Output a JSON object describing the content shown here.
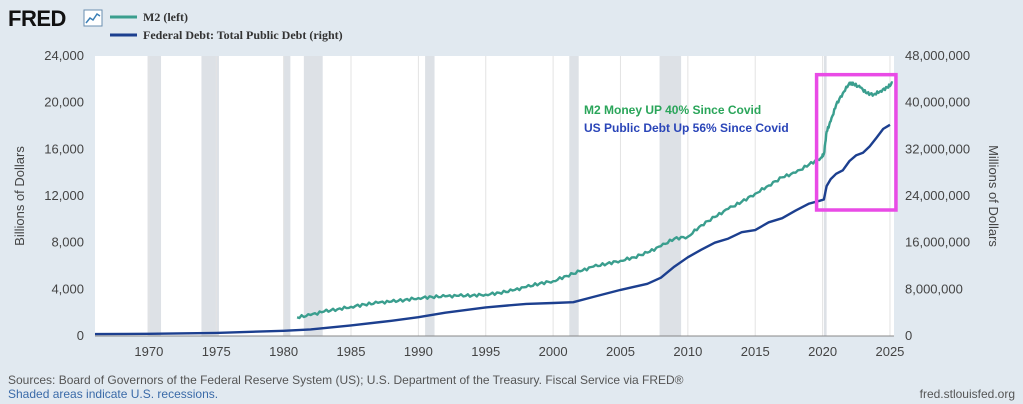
{
  "header": {
    "logo_text": "FRED",
    "logo_icon": "line-chart-icon",
    "legend": [
      {
        "label": "M2 (left)",
        "color": "#3a9e8e"
      },
      {
        "label": "Federal Debt: Total Public Debt (right)",
        "color": "#1c3f8f"
      }
    ]
  },
  "chart_data": {
    "type": "line",
    "title": "",
    "y_left_label": "Billions of Dollars",
    "y_right_label": "Millions of Dollars",
    "x_range": [
      1966,
      2025.3
    ],
    "y_left_range": [
      0,
      24000
    ],
    "y_right_range": [
      0,
      48000000
    ],
    "x_ticks": [
      1970,
      1975,
      1980,
      1985,
      1990,
      1995,
      2000,
      2005,
      2010,
      2015,
      2020,
      2025
    ],
    "y_left_ticks": [
      "0",
      "4,000",
      "8,000",
      "12,000",
      "16,000",
      "20,000",
      "24,000"
    ],
    "y_right_ticks": [
      "0",
      "8,000,000",
      "16,000,000",
      "24,000,000",
      "32,000,000",
      "40,000,000",
      "48,000,000"
    ],
    "grid": "vertical",
    "recessions": [
      [
        1969.9,
        1970.9
      ],
      [
        1973.9,
        1975.2
      ],
      [
        1980.0,
        1980.5
      ],
      [
        1981.5,
        1982.9
      ],
      [
        1990.5,
        1991.2
      ],
      [
        2001.2,
        2001.9
      ],
      [
        2007.9,
        2009.5
      ],
      [
        2020.1,
        2020.3
      ]
    ],
    "series": [
      {
        "name": "M2 (left)",
        "axis": "left",
        "color": "#3a9e8e",
        "x": [
          1981.0,
          1982.0,
          1983.0,
          1984.0,
          1985.0,
          1986.0,
          1987.0,
          1988.0,
          1989.0,
          1990.0,
          1991.0,
          1992.0,
          1993.0,
          1994.0,
          1995.0,
          1996.0,
          1997.0,
          1998.0,
          1999.0,
          2000.0,
          2001.0,
          2002.0,
          2003.0,
          2004.0,
          2005.0,
          2006.0,
          2007.0,
          2008.0,
          2009.0,
          2010.0,
          2011.0,
          2012.0,
          2013.0,
          2014.0,
          2015.0,
          2016.0,
          2017.0,
          2018.0,
          2019.0,
          2019.9,
          2020.1,
          2020.3,
          2020.6,
          2021.0,
          2021.5,
          2022.0,
          2022.3,
          2022.8,
          2023.3,
          2023.8,
          2024.3,
          2024.8,
          2025.2
        ],
        "values": [
          1600,
          1800,
          2100,
          2300,
          2500,
          2700,
          2850,
          2950,
          3100,
          3250,
          3350,
          3400,
          3450,
          3480,
          3550,
          3700,
          3900,
          4200,
          4500,
          4700,
          5150,
          5550,
          5950,
          6200,
          6450,
          6750,
          7150,
          7700,
          8350,
          8500,
          9500,
          10200,
          10900,
          11500,
          12200,
          12900,
          13600,
          14000,
          14700,
          15300,
          15600,
          17500,
          18400,
          19800,
          20800,
          21700,
          21600,
          21300,
          20800,
          20700,
          21000,
          21300,
          21700
        ]
      },
      {
        "name": "Federal Debt: Total Public Debt (right)",
        "axis": "right",
        "color": "#1c3f8f",
        "x": [
          1966.0,
          1970.0,
          1975.0,
          1980.0,
          1982.0,
          1985.0,
          1988.0,
          1990.0,
          1992.0,
          1995.0,
          1998.0,
          2000.0,
          2001.5,
          2003.0,
          2005.0,
          2007.0,
          2008.0,
          2009.0,
          2010.0,
          2011.0,
          2012.0,
          2013.0,
          2014.0,
          2015.0,
          2016.0,
          2017.0,
          2018.0,
          2019.0,
          2019.8,
          2020.1,
          2020.3,
          2020.6,
          2021.0,
          2021.5,
          2022.0,
          2022.5,
          2023.0,
          2023.5,
          2024.0,
          2024.5,
          2025.0
        ],
        "values": [
          320000,
          380000,
          540000,
          900000,
          1140000,
          1820000,
          2600000,
          3230000,
          4000000,
          4900000,
          5500000,
          5660000,
          5800000,
          6700000,
          7900000,
          8950000,
          10000000,
          11900000,
          13500000,
          14800000,
          16000000,
          16700000,
          17800000,
          18150000,
          19500000,
          20200000,
          21500000,
          22700000,
          23200000,
          23400000,
          25700000,
          26900000,
          27800000,
          28400000,
          30000000,
          31000000,
          31400000,
          32500000,
          34000000,
          35500000,
          36200000
        ]
      }
    ],
    "annotations": [
      {
        "text": "M2 Money UP 40% Since Covid",
        "color": "#2aa55a"
      },
      {
        "text": "US Public Debt Up 56% Since Covid",
        "color": "#2a45b8"
      }
    ],
    "highlight_box": {
      "color": "#e94be6",
      "x_range": [
        2020.0,
        2025.0
      ],
      "y_left_range": [
        10800,
        22400
      ]
    }
  },
  "footer": {
    "sources": "Sources: Board of Governors of the Federal Reserve System (US); U.S. Department of the Treasury. Fiscal Service via FRED®",
    "recession_note": "Shaded areas indicate U.S. recessions.",
    "site": "fred.stlouisfed.org"
  }
}
